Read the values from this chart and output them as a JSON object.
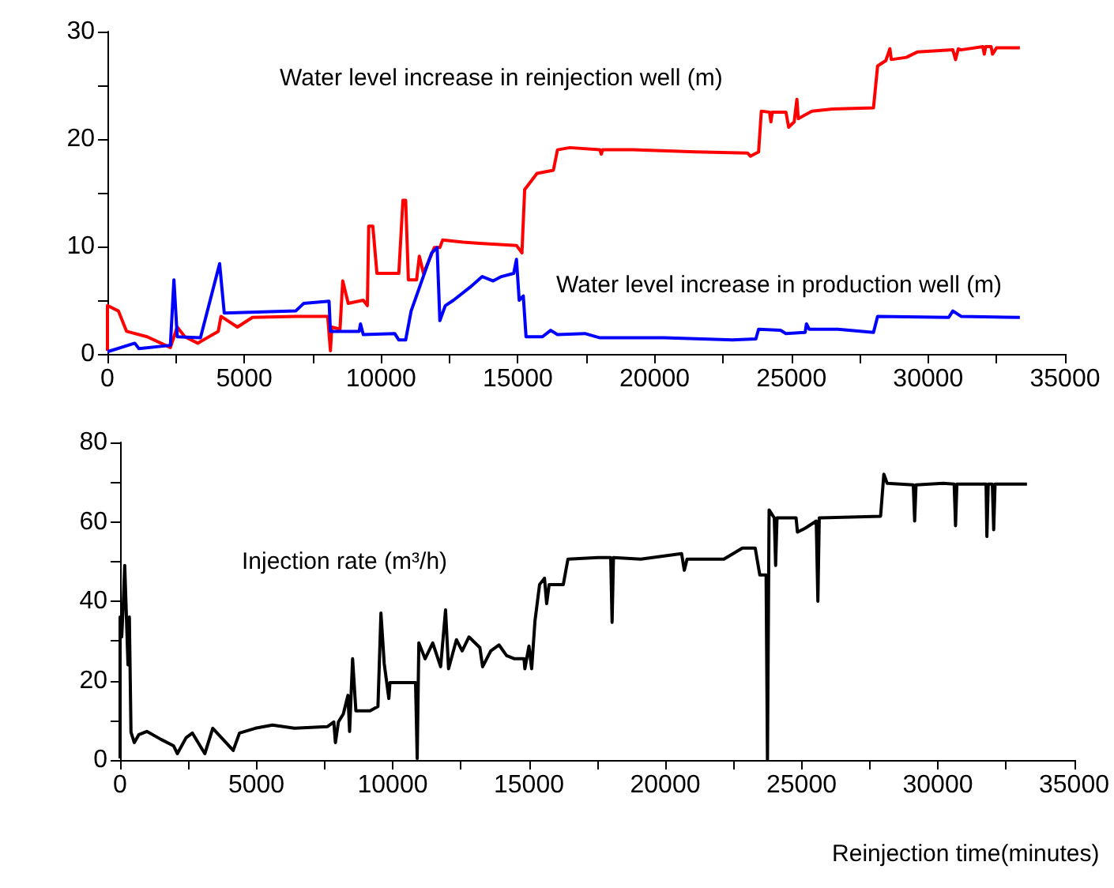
{
  "chart_data": [
    {
      "type": "line",
      "xlim": [
        0,
        35000
      ],
      "xticks": [
        0,
        {
          "value": 2500,
          "label": null
        },
        5000,
        {
          "value": 7500,
          "label": null
        },
        10000,
        {
          "value": 12500,
          "label": null
        },
        15000,
        {
          "value": 17500,
          "label": null
        },
        20000,
        {
          "value": 22500,
          "label": null
        },
        25000,
        {
          "value": 27500,
          "label": null
        },
        30000,
        {
          "value": 32500,
          "label": null
        },
        35000
      ],
      "ylim": [
        0,
        30
      ],
      "yticks": [
        0,
        {
          "value": 5,
          "label": null
        },
        10,
        {
          "value": 15,
          "label": null
        },
        20,
        {
          "value": 25,
          "label": null
        },
        30
      ],
      "grid": false,
      "legend": false,
      "series": [
        {
          "name": "Water level increase in reinjection well (m)",
          "color": "#ff0000",
          "x": [
            0,
            0,
            400,
            700,
            1450,
            2300,
            2550,
            2830,
            3300,
            4050,
            4150,
            4750,
            5300,
            6900,
            8050,
            8150,
            8200,
            8500,
            8600,
            8800,
            9350,
            9500,
            9550,
            9700,
            9850,
            10650,
            10800,
            10900,
            11000,
            11300,
            11400,
            11550,
            11950,
            12150,
            12250,
            13000,
            13600,
            14950,
            15150,
            15250,
            15700,
            16300,
            16450,
            16900,
            18000,
            18050,
            18100,
            19200,
            21500,
            23400,
            23500,
            23800,
            23900,
            24200,
            24250,
            24300,
            24800,
            24900,
            25100,
            25200,
            25250,
            25750,
            26500,
            28000,
            28150,
            28450,
            28600,
            28650,
            29200,
            29600,
            30900,
            31000,
            31100,
            31200,
            32000,
            32050,
            32100,
            32300,
            32350,
            32500,
            33350
          ],
          "values": [
            0.3,
            4.5,
            4.0,
            2.1,
            1.6,
            0.6,
            2.5,
            1.6,
            1.0,
            2.1,
            3.5,
            2.5,
            3.4,
            3.5,
            3.5,
            0.3,
            2.5,
            2.3,
            6.8,
            4.7,
            5.0,
            4.5,
            11.9,
            11.9,
            7.5,
            7.5,
            14.3,
            14.3,
            6.9,
            6.9,
            9.1,
            7.5,
            9.9,
            9.9,
            10.6,
            10.4,
            10.3,
            10.1,
            9.4,
            15.3,
            16.8,
            17.1,
            19.0,
            19.2,
            19.0,
            18.6,
            19.0,
            19.0,
            18.8,
            18.7,
            18.4,
            18.8,
            22.6,
            22.5,
            21.6,
            22.5,
            22.5,
            21.1,
            21.6,
            23.7,
            21.9,
            22.6,
            22.8,
            22.9,
            26.8,
            27.3,
            28.4,
            27.4,
            27.6,
            28.1,
            28.3,
            27.4,
            28.4,
            28.3,
            28.6,
            27.9,
            28.6,
            28.6,
            27.9,
            28.5,
            28.5
          ]
        },
        {
          "name": "Water level increase in production well (m)",
          "color": "#0000ff",
          "x": [
            0,
            1000,
            1150,
            2300,
            2430,
            2550,
            3400,
            4100,
            4270,
            6880,
            7170,
            8100,
            8150,
            9200,
            9250,
            9350,
            10500,
            10650,
            10900,
            11100,
            11850,
            12050,
            12150,
            12350,
            12650,
            13250,
            13700,
            14100,
            14400,
            14850,
            14950,
            15050,
            15200,
            15300,
            15900,
            16200,
            16450,
            17450,
            18000,
            20350,
            22850,
            23700,
            23800,
            24600,
            24800,
            25500,
            25550,
            25650,
            26700,
            28000,
            28150,
            30750,
            30900,
            31200,
            33350
          ],
          "values": [
            0.2,
            1.0,
            0.5,
            0.8,
            6.9,
            1.6,
            1.5,
            8.4,
            3.8,
            4.0,
            4.7,
            4.9,
            2.1,
            2.1,
            2.8,
            1.8,
            1.9,
            1.3,
            1.3,
            4.0,
            9.4,
            9.9,
            3.1,
            4.5,
            5.0,
            6.2,
            7.2,
            6.8,
            7.2,
            7.5,
            8.8,
            5.0,
            5.4,
            1.6,
            1.6,
            2.2,
            1.8,
            1.9,
            1.5,
            1.5,
            1.3,
            1.4,
            2.3,
            2.2,
            1.9,
            2.0,
            2.8,
            2.3,
            2.3,
            2.0,
            3.5,
            3.4,
            4.0,
            3.5,
            3.4
          ]
        }
      ]
    },
    {
      "type": "line",
      "xlabel": "Reinjection time(minutes)",
      "xlim": [
        0,
        35000
      ],
      "xticks": [
        0,
        {
          "value": 2500,
          "label": null
        },
        5000,
        {
          "value": 7500,
          "label": null
        },
        10000,
        {
          "value": 12500,
          "label": null
        },
        15000,
        {
          "value": 17500,
          "label": null
        },
        20000,
        {
          "value": 22500,
          "label": null
        },
        25000,
        {
          "value": 27500,
          "label": null
        },
        30000,
        {
          "value": 32500,
          "label": null
        },
        35000
      ],
      "ylim": [
        0,
        80
      ],
      "yticks": [
        0,
        {
          "value": 10,
          "label": null
        },
        20,
        {
          "value": 30,
          "label": null
        },
        40,
        {
          "value": 50,
          "label": null
        },
        60,
        {
          "value": 70,
          "label": null
        },
        80
      ],
      "grid": false,
      "legend": false,
      "series": [
        {
          "name": "Injection rate (m³/h)",
          "color": "#000000",
          "x": [
            0,
            0,
            60,
            120,
            170,
            290,
            340,
            400,
            520,
            690,
            980,
            1500,
            1960,
            2100,
            2420,
            2650,
            3110,
            3400,
            4150,
            4380,
            4960,
            5590,
            6400,
            7600,
            7840,
            7900,
            8010,
            8190,
            8360,
            8420,
            8530,
            8650,
            9170,
            9460,
            9570,
            9690,
            9860,
            9900,
            10840,
            10900,
            10960,
            11190,
            11470,
            11760,
            11940,
            12050,
            12340,
            12550,
            12800,
            13200,
            13300,
            13600,
            13900,
            14180,
            14470,
            14820,
            14850,
            15000,
            15100,
            15220,
            15390,
            15570,
            15650,
            15740,
            16260,
            16430,
            17530,
            18000,
            18050,
            18100,
            19100,
            20600,
            20700,
            20800,
            22150,
            22830,
            23300,
            23470,
            23700,
            23750,
            23810,
            24000,
            24050,
            24100,
            24160,
            24800,
            24850,
            25140,
            25540,
            25600,
            25650,
            25700,
            27900,
            28020,
            28140,
            29100,
            29150,
            29200,
            30200,
            30600,
            30650,
            30700,
            31770,
            31800,
            31850,
            32000,
            32050,
            32100,
            33270
          ],
          "values": [
            0.4,
            36,
            31,
            40,
            49,
            24,
            36,
            7,
            4.4,
            6.4,
            7.2,
            5.2,
            3.6,
            1.6,
            5.6,
            6.8,
            1.6,
            8,
            2.4,
            6.8,
            8,
            8.8,
            8,
            8.4,
            9.6,
            4.4,
            9.6,
            11.6,
            16.3,
            7.2,
            25.5,
            12.4,
            12.4,
            13.5,
            37,
            24.3,
            15.5,
            19.5,
            19.5,
            0.4,
            29.5,
            25.5,
            29.5,
            23.5,
            37.8,
            23,
            30.3,
            27.5,
            31,
            28.3,
            23.5,
            27.5,
            29,
            26.3,
            25.5,
            25.5,
            23,
            28.7,
            23,
            35,
            44.2,
            45.8,
            39.4,
            44.2,
            44.2,
            50.6,
            51,
            51,
            34.7,
            51,
            50.6,
            52,
            47.8,
            50.6,
            50.6,
            53.4,
            53.4,
            46.6,
            46.6,
            0,
            63,
            61,
            49,
            61,
            61,
            61,
            57.4,
            58.4,
            60.2,
            40,
            61,
            61,
            61.4,
            72,
            69.7,
            69.3,
            60.2,
            69.3,
            69.7,
            69.5,
            59,
            69.5,
            69.5,
            56.3,
            69.5,
            69.5,
            58,
            69.5,
            69.5
          ]
        }
      ]
    }
  ]
}
